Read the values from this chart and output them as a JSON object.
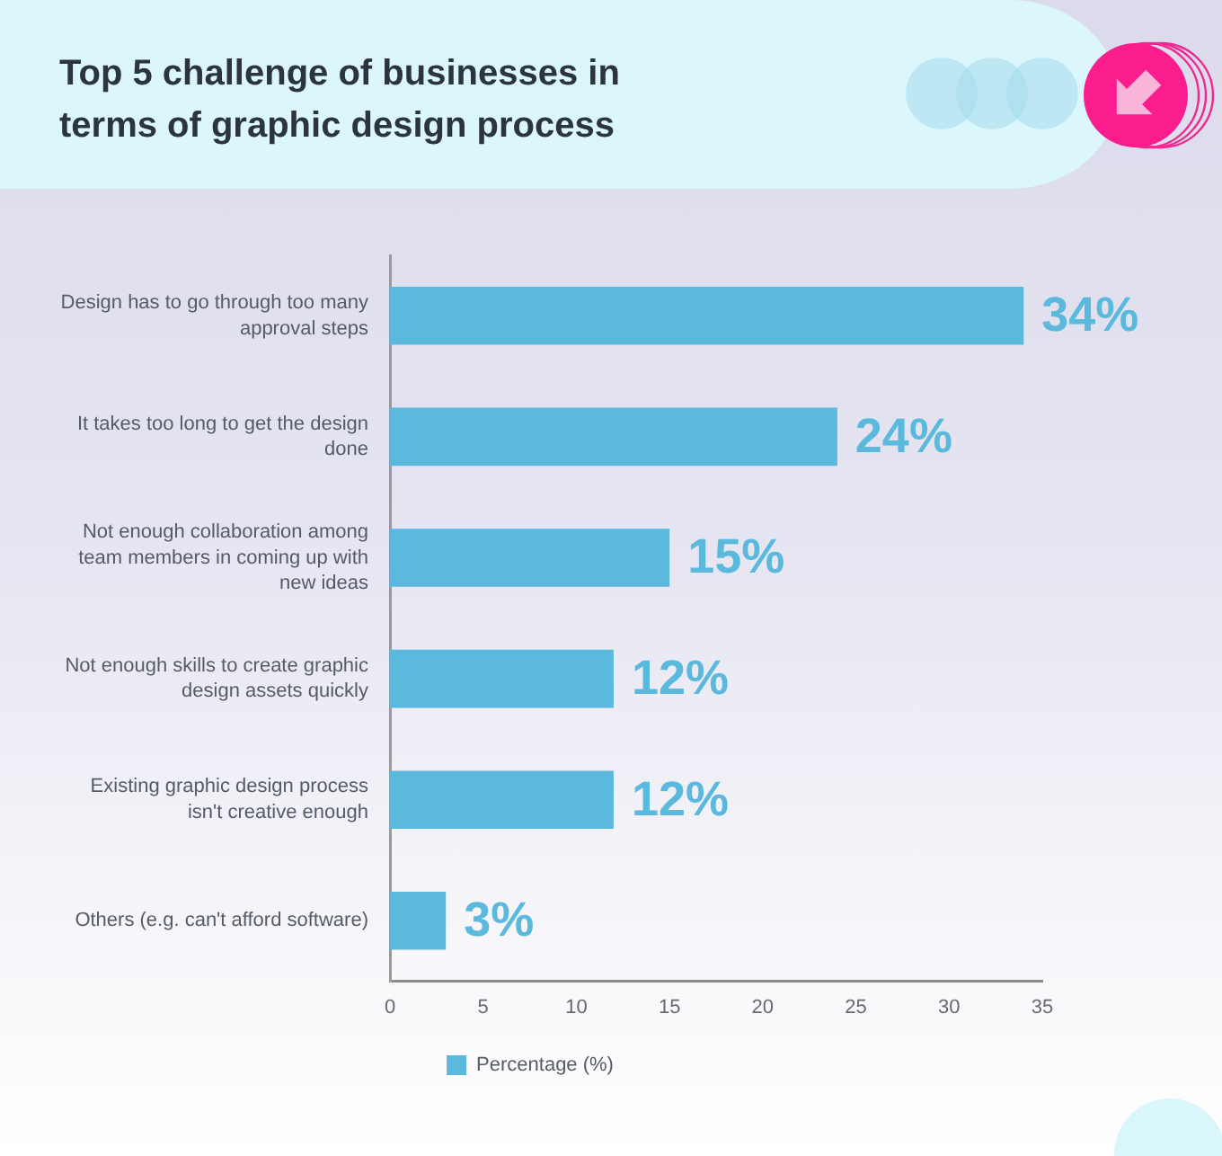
{
  "chart_data": {
    "type": "bar",
    "orientation": "horizontal",
    "title": "Top 5 challenge of businesses in terms of graphic design process",
    "categories": [
      "Design has to go through too many approval steps",
      "It takes too long to get the design done",
      "Not enough collaboration among team members in coming up with new ideas",
      "Not enough skills to create graphic design assets quickly",
      "Existing graphic design process isn't creative enough",
      "Others (e.g. can't afford software)"
    ],
    "series": [
      {
        "name": "Percentage (%)",
        "color": "#5ab9dc",
        "values": [
          34,
          24,
          15,
          12,
          12,
          3
        ],
        "value_labels": [
          "34%",
          "24%",
          "15%",
          "12%",
          "12%",
          "3%"
        ]
      }
    ],
    "xlim": [
      0,
      35
    ],
    "xticks": [
      0,
      5,
      10,
      15,
      20,
      25,
      30,
      35
    ],
    "legend": "bottom"
  }
}
